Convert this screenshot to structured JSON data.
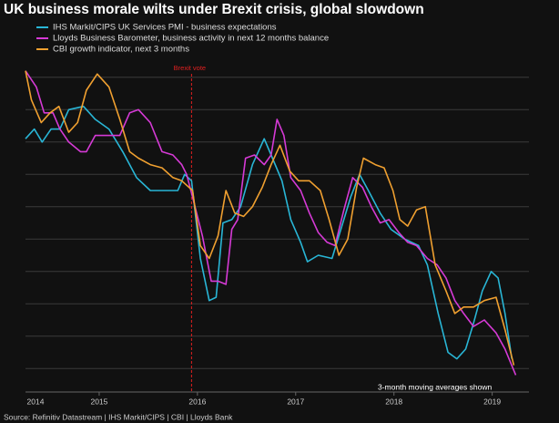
{
  "chart_data": {
    "type": "line",
    "title": "UK business morale wilts under Brexit crisis, global slowdown",
    "source": "Source: Refinitiv Datastream | IHS Markit/CIPS | CBI | Lloyds Bank",
    "note": "3-month moving averages shown",
    "annotations": [
      {
        "text": "Brexit vote",
        "x": 2015.94,
        "color": "#e02020"
      }
    ],
    "xlim": [
      2014.25,
      2019.3
    ],
    "xticks": [
      2014,
      2015,
      2016,
      2017,
      2018,
      2019
    ],
    "ylim": [
      -0.5,
      9.5
    ],
    "grid": true,
    "series": [
      {
        "name": "IHS Markit/CIPS UK Services PMI - business expectations",
        "color": "#29b6d6",
        "x": [
          2014.25,
          2014.34,
          2014.42,
          2014.51,
          2014.6,
          2014.69,
          2014.84,
          2014.96,
          2015.1,
          2015.24,
          2015.38,
          2015.52,
          2015.8,
          2015.87,
          2015.94,
          2016.03,
          2016.12,
          2016.19,
          2016.26,
          2016.35,
          2016.44,
          2016.56,
          2016.68,
          2016.75,
          2016.86,
          2016.95,
          2017.05,
          2017.12,
          2017.23,
          2017.37,
          2017.46,
          2017.56,
          2017.65,
          2017.74,
          2017.86,
          2017.97,
          2018.11,
          2018.25,
          2018.34,
          2018.45,
          2018.55,
          2018.64,
          2018.73,
          2018.81,
          2018.9,
          2018.99,
          2019.06,
          2019.13,
          2019.2
        ],
        "values": [
          7.1,
          7.4,
          7.0,
          7.4,
          7.4,
          8.0,
          8.1,
          7.7,
          7.4,
          6.7,
          5.9,
          5.5,
          5.5,
          6.0,
          5.8,
          3.4,
          2.1,
          2.2,
          4.5,
          4.6,
          5.0,
          6.3,
          7.1,
          6.6,
          5.8,
          4.6,
          3.9,
          3.3,
          3.5,
          3.4,
          4.3,
          5.3,
          6.0,
          5.5,
          4.8,
          4.3,
          4.0,
          3.8,
          3.2,
          1.7,
          0.5,
          0.3,
          0.6,
          1.4,
          2.4,
          3.0,
          2.8,
          1.7,
          0.3
        ]
      },
      {
        "name": "Lloyds Business Barometer, business activity in next 12 months balance",
        "color": "#d63ad6",
        "x": [
          2014.25,
          2014.36,
          2014.44,
          2014.53,
          2014.6,
          2014.69,
          2014.81,
          2014.87,
          2014.96,
          2015.06,
          2015.21,
          2015.31,
          2015.4,
          2015.52,
          2015.64,
          2015.75,
          2015.84,
          2015.89,
          2015.95,
          2016.05,
          2016.14,
          2016.21,
          2016.29,
          2016.35,
          2016.41,
          2016.49,
          2016.58,
          2016.68,
          2016.75,
          2016.81,
          2016.88,
          2016.95,
          2017.05,
          2017.14,
          2017.23,
          2017.32,
          2017.4,
          2017.49,
          2017.58,
          2017.68,
          2017.77,
          2017.86,
          2017.95,
          2018.05,
          2018.14,
          2018.23,
          2018.34,
          2018.44,
          2018.53,
          2018.62,
          2018.71,
          2018.81,
          2018.92,
          2019.04,
          2019.13,
          2019.24
        ],
        "values": [
          9.2,
          8.7,
          7.9,
          7.9,
          7.4,
          7.0,
          6.7,
          6.7,
          7.2,
          7.2,
          7.2,
          7.9,
          8.0,
          7.6,
          6.7,
          6.6,
          6.3,
          6.0,
          5.3,
          4.1,
          2.7,
          2.7,
          2.6,
          4.3,
          4.6,
          6.5,
          6.6,
          6.3,
          6.6,
          7.7,
          7.2,
          5.9,
          5.5,
          4.8,
          4.2,
          3.9,
          3.8,
          4.9,
          5.9,
          5.6,
          5.0,
          4.5,
          4.6,
          4.2,
          3.9,
          3.8,
          3.4,
          3.2,
          2.8,
          2.1,
          1.7,
          1.3,
          1.5,
          1.1,
          0.6,
          -0.2
        ]
      },
      {
        "name": "CBI growth indicator, next 3 months",
        "color": "#f0a030",
        "x": [
          2014.25,
          2014.31,
          2014.41,
          2014.5,
          2014.59,
          2014.69,
          2014.78,
          2014.87,
          2014.98,
          2015.1,
          2015.21,
          2015.31,
          2015.4,
          2015.52,
          2015.64,
          2015.75,
          2015.84,
          2015.95,
          2016.03,
          2016.12,
          2016.21,
          2016.29,
          2016.38,
          2016.47,
          2016.56,
          2016.66,
          2016.75,
          2016.84,
          2016.94,
          2017.03,
          2017.14,
          2017.25,
          2017.34,
          2017.44,
          2017.53,
          2017.62,
          2017.69,
          2017.81,
          2017.9,
          2017.99,
          2018.06,
          2018.14,
          2018.23,
          2018.32,
          2018.42,
          2018.53,
          2018.62,
          2018.71,
          2018.81,
          2018.92,
          2019.04,
          2019.13,
          2019.22
        ],
        "values": [
          9.2,
          8.3,
          7.6,
          7.9,
          8.1,
          7.3,
          7.6,
          8.6,
          9.1,
          8.7,
          7.7,
          6.7,
          6.5,
          6.3,
          6.2,
          5.9,
          5.8,
          5.5,
          3.8,
          3.4,
          4.1,
          5.5,
          4.8,
          4.7,
          5.0,
          5.6,
          6.3,
          6.9,
          6.1,
          5.8,
          5.8,
          5.5,
          4.6,
          3.5,
          4.0,
          5.6,
          6.5,
          6.3,
          6.2,
          5.5,
          4.6,
          4.4,
          4.9,
          5.0,
          3.2,
          2.4,
          1.7,
          1.9,
          1.9,
          2.1,
          2.2,
          1.2,
          0.1
        ]
      }
    ]
  }
}
